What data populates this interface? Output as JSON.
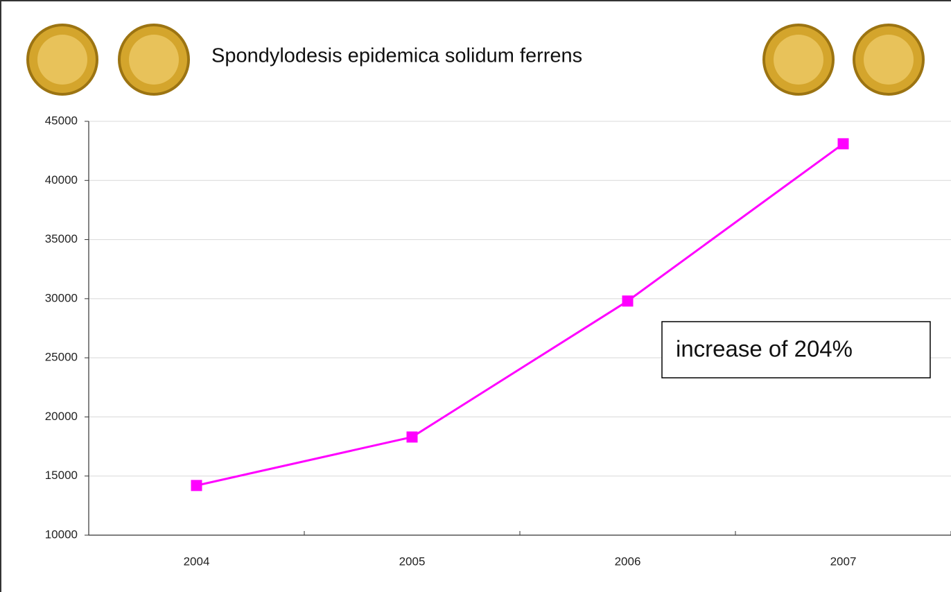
{
  "chart_data": {
    "type": "line",
    "title": "Spondylodesis epidemica solidum ferrens",
    "annotation": "increase of 204%",
    "categories": [
      "2004",
      "2005",
      "2006",
      "2007"
    ],
    "series": [
      {
        "color": "#ff00ff",
        "values": [
          14200,
          18300,
          29800,
          43100
        ]
      }
    ],
    "ylim": [
      10000,
      45000
    ],
    "yticks": [
      10000,
      15000,
      20000,
      25000,
      30000,
      35000,
      40000,
      45000
    ],
    "grid": true
  }
}
